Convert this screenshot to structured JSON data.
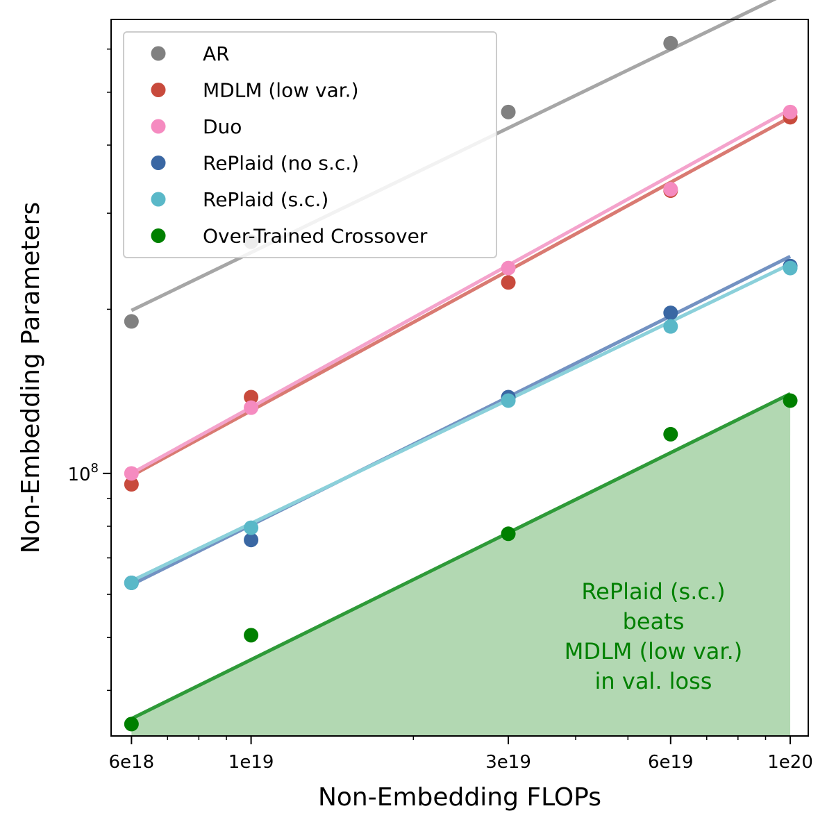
{
  "chart_data": {
    "type": "scatter",
    "xlabel": "Non-Embedding FLOPs",
    "ylabel": "Non-Embedding Parameters",
    "xscale": "log",
    "yscale": "log",
    "xlim": [
      5.5e+18,
      1.08e+20
    ],
    "ylim": [
      33000000.0,
      680000000.0
    ],
    "x_ticks": [
      6e+18,
      1e+19,
      3e+19,
      6e+19,
      1e+20
    ],
    "x_tick_labels": [
      "6e18",
      "1e19",
      "3e19",
      "6e19",
      "1e20"
    ],
    "y_ticks": [
      100000000.0
    ],
    "y_tick_label": {
      "base": "10",
      "exp": "8"
    },
    "grid": false,
    "legend": "top-left",
    "x": [
      6e+18,
      1e+19,
      3e+19,
      6e+19,
      1e+20
    ],
    "series": [
      {
        "name": "AR",
        "color": "#808080",
        "line_color": "#a6a6a6",
        "values": [
          190000000.0,
          266000000.0,
          460000000.0,
          615000000.0,
          765000000.0
        ],
        "fit": [
          [
            6e+18,
            199000000.0
          ],
          [
            1e+20,
            765000000.0
          ]
        ]
      },
      {
        "name": "MDLM (low var.)",
        "color": "#c84a3c",
        "line_color": "#d97a72",
        "values": [
          95500000.0,
          138000000.0,
          224000000.0,
          330000000.0,
          450000000.0
        ],
        "fit": [
          [
            6e+18,
            99000000.0
          ],
          [
            1e+20,
            450000000.0
          ]
        ]
      },
      {
        "name": "Duo",
        "color": "#f58bc0",
        "line_color": "#f4a3cc",
        "values": [
          100000000.0,
          132000000.0,
          238000000.0,
          332000000.0,
          460000000.0
        ],
        "fit": [
          [
            6e+18,
            100000000.0
          ],
          [
            1e+20,
            465000000.0
          ]
        ]
      },
      {
        "name": "RePlaid (no s.c.)",
        "color": "#3a67a3",
        "line_color": "#7392c2",
        "values": [
          63000000.0,
          75500000.0,
          138000000.0,
          197000000.0,
          240000000.0
        ],
        "fit": [
          [
            6e+18,
            62500000.0
          ],
          [
            1e+20,
            250000000.0
          ]
        ]
      },
      {
        "name": "RePlaid (s.c.)",
        "color": "#5ab8c8",
        "line_color": "#8bd0da",
        "values": [
          63000000.0,
          79500000.0,
          136000000.0,
          186000000.0,
          238000000.0
        ],
        "fit": [
          [
            6e+18,
            63500000.0
          ],
          [
            1e+20,
            242000000.0
          ]
        ]
      },
      {
        "name": "Over-Trained Crossover",
        "color": "#008000",
        "line_color": "#2e9a38",
        "values": [
          34700000.0,
          50500000.0,
          77500000.0,
          118000000.0,
          136000000.0
        ],
        "fit": [
          [
            6e+18,
            35500000.0
          ],
          [
            1e+20,
            140000000.0
          ]
        ]
      }
    ],
    "annotation": {
      "lines": [
        "RePlaid (s.c.)",
        "beats",
        "MDLM (low var.)",
        "in val. loss"
      ],
      "color": "#008000"
    },
    "fill": {
      "under_series": "Over-Trained Crossover",
      "color": "#b2d8b2"
    }
  }
}
